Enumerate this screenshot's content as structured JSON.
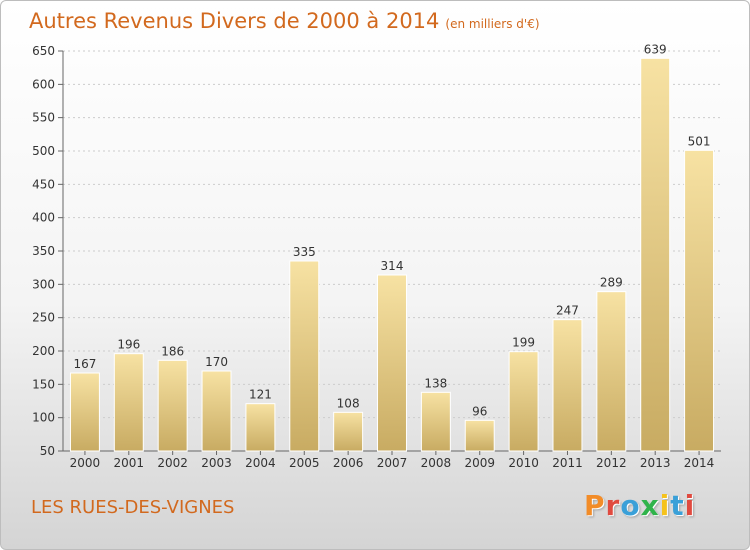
{
  "header": {
    "title": "Autres Revenus Divers de 2000 à 2014",
    "unit": "(en milliers d'€)"
  },
  "footer": {
    "place": "LES RUES-DES-VIGNES",
    "logo": {
      "letters": [
        "P",
        "r",
        "o",
        "x",
        "i",
        "t",
        "i"
      ],
      "colors": [
        "#f28c28",
        "#e04a3f",
        "#3aa0d8",
        "#2fb34a",
        "#f5c21b",
        "#3aa0d8",
        "#e04a3f"
      ]
    }
  },
  "colors": {
    "title": "#d2691e",
    "bar_light": "#f7e2a3",
    "bar_dark": "#c8ab62",
    "grid": "#cccccc"
  },
  "chart_data": {
    "type": "bar",
    "title": "Autres Revenus Divers de 2000 à 2014",
    "subtitle": "(en milliers d'€)",
    "xlabel": "",
    "ylabel": "",
    "categories": [
      "2000",
      "2001",
      "2002",
      "2003",
      "2004",
      "2005",
      "2006",
      "2007",
      "2008",
      "2009",
      "2010",
      "2011",
      "2012",
      "2013",
      "2014"
    ],
    "values": [
      167,
      196,
      186,
      170,
      121,
      335,
      108,
      314,
      138,
      96,
      199,
      247,
      289,
      639,
      501
    ],
    "ylim": [
      50,
      650
    ],
    "yticks": [
      50,
      100,
      150,
      200,
      250,
      300,
      350,
      400,
      450,
      500,
      550,
      600,
      650
    ],
    "grid": true,
    "legend": "none"
  }
}
